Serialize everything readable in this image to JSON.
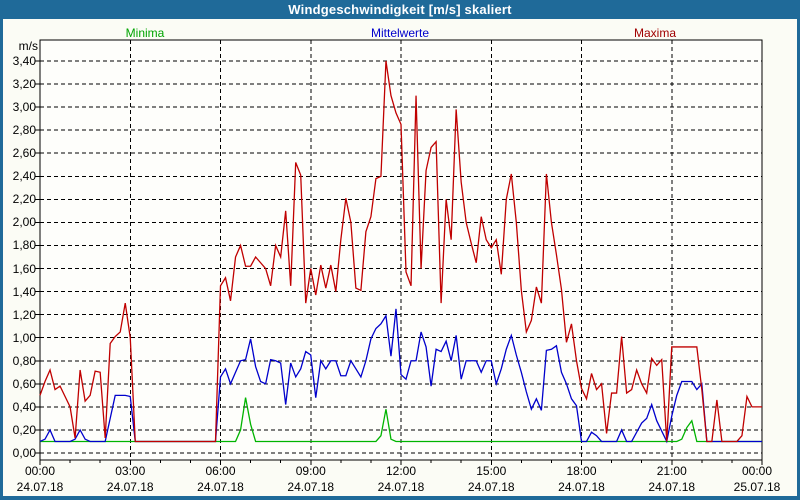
{
  "window": {
    "title": "Windgeschwindigkeit [m/s] skaliert",
    "titlebar_color": "#1f6a99",
    "background_color": "#fbfcf5",
    "plot_background": "#fefefb"
  },
  "legend": [
    {
      "label": "Minima",
      "color": "#00a400"
    },
    {
      "label": "Mittelwerte",
      "color": "#0000cc"
    },
    {
      "label": "Maxima",
      "color": "#a00000"
    }
  ],
  "chart_data": {
    "type": "line",
    "title": "Windgeschwindigkeit [m/s] skaliert",
    "xlabel": "",
    "ylabel": "m/s",
    "ylim": [
      0.0,
      3.4
    ],
    "ytick_step": 0.2,
    "ytick_labels": [
      "0,00",
      "0,20",
      "0,40",
      "0,60",
      "0,80",
      "1,00",
      "1,20",
      "1,40",
      "1,60",
      "1,80",
      "2,00",
      "2,20",
      "2,40",
      "2,60",
      "2,80",
      "3,00",
      "3,20",
      "3,40"
    ],
    "x_hours_range": [
      0,
      24
    ],
    "xticks": [
      {
        "time": "00:00",
        "date": "24.07.18"
      },
      {
        "time": "03:00",
        "date": "24.07.18"
      },
      {
        "time": "06:00",
        "date": "24.07.18"
      },
      {
        "time": "09:00",
        "date": "24.07.18"
      },
      {
        "time": "12:00",
        "date": "24.07.18"
      },
      {
        "time": "15:00",
        "date": "24.07.18"
      },
      {
        "time": "18:00",
        "date": "24.07.18"
      },
      {
        "time": "21:00",
        "date": "24.07.18"
      },
      {
        "time": "00:00",
        "date": "25.07.18"
      }
    ],
    "grid": "dashed",
    "legend_position": "top",
    "sample_interval_minutes": 10,
    "series": [
      {
        "name": "Minima",
        "color": "#00b400",
        "values": [
          0.1,
          0.1,
          0.1,
          0.1,
          0.1,
          0.1,
          0.1,
          0.1,
          0.1,
          0.1,
          0.1,
          0.1,
          0.1,
          0.1,
          0.1,
          0.1,
          0.1,
          0.1,
          0.1,
          0.1,
          0.1,
          0.1,
          0.1,
          0.1,
          0.1,
          0.1,
          0.1,
          0.1,
          0.1,
          0.1,
          0.1,
          0.1,
          0.1,
          0.1,
          0.1,
          0.1,
          0.1,
          0.1,
          0.1,
          0.1,
          0.2,
          0.48,
          0.25,
          0.1,
          0.1,
          0.1,
          0.1,
          0.1,
          0.1,
          0.1,
          0.1,
          0.1,
          0.1,
          0.1,
          0.1,
          0.1,
          0.1,
          0.1,
          0.1,
          0.1,
          0.1,
          0.1,
          0.1,
          0.1,
          0.1,
          0.1,
          0.1,
          0.1,
          0.15,
          0.38,
          0.12,
          0.1,
          0.1,
          0.1,
          0.1,
          0.1,
          0.1,
          0.1,
          0.1,
          0.1,
          0.1,
          0.1,
          0.1,
          0.1,
          0.1,
          0.1,
          0.1,
          0.1,
          0.1,
          0.1,
          0.1,
          0.1,
          0.1,
          0.1,
          0.1,
          0.1,
          0.1,
          0.1,
          0.1,
          0.1,
          0.1,
          0.1,
          0.1,
          0.1,
          0.1,
          0.1,
          0.1,
          0.1,
          0.1,
          0.1,
          0.1,
          0.1,
          0.1,
          0.1,
          0.1,
          0.1,
          0.1,
          0.1,
          0.1,
          0.1,
          0.1,
          0.1,
          0.1,
          0.1,
          0.1,
          0.1,
          0.1,
          0.1,
          0.12,
          0.22,
          0.28,
          0.1,
          0.1,
          0.1,
          0.1,
          0.1,
          0.1,
          0.1,
          0.1,
          0.1,
          0.1,
          0.1,
          0.1,
          0.1,
          0.1
        ]
      },
      {
        "name": "Mittelwerte",
        "color": "#0000cc",
        "values": [
          0.1,
          0.12,
          0.2,
          0.1,
          0.1,
          0.1,
          0.1,
          0.12,
          0.2,
          0.12,
          0.1,
          0.1,
          0.1,
          0.1,
          0.3,
          0.5,
          0.5,
          0.5,
          0.49,
          0.1,
          0.1,
          0.1,
          0.1,
          0.1,
          0.1,
          0.1,
          0.1,
          0.1,
          0.1,
          0.1,
          0.1,
          0.1,
          0.1,
          0.1,
          0.1,
          0.1,
          0.66,
          0.73,
          0.6,
          0.7,
          0.8,
          0.81,
          0.99,
          0.75,
          0.62,
          0.6,
          0.81,
          0.8,
          0.78,
          0.42,
          0.78,
          0.66,
          0.73,
          0.88,
          0.85,
          0.48,
          0.8,
          0.73,
          0.8,
          0.8,
          0.67,
          0.67,
          0.8,
          0.73,
          0.66,
          0.8,
          0.99,
          1.08,
          1.12,
          1.19,
          0.84,
          1.25,
          0.68,
          0.64,
          0.8,
          0.8,
          1.05,
          0.92,
          0.58,
          0.9,
          0.88,
          0.97,
          0.8,
          1.02,
          0.64,
          0.8,
          0.8,
          0.8,
          0.7,
          0.8,
          0.8,
          0.6,
          0.73,
          0.9,
          1.02,
          0.85,
          0.7,
          0.53,
          0.38,
          0.47,
          0.37,
          0.89,
          0.9,
          0.93,
          0.7,
          0.6,
          0.47,
          0.41,
          0.1,
          0.1,
          0.18,
          0.15,
          0.1,
          0.1,
          0.1,
          0.1,
          0.2,
          0.1,
          0.1,
          0.18,
          0.26,
          0.3,
          0.42,
          0.28,
          0.19,
          0.1,
          0.32,
          0.5,
          0.62,
          0.62,
          0.62,
          0.55,
          0.6,
          0.1,
          0.1,
          0.1,
          0.1,
          0.1,
          0.1,
          0.1,
          0.1,
          0.1,
          0.1,
          0.1,
          0.1
        ]
      },
      {
        "name": "Maxima",
        "color": "#c00000",
        "values": [
          0.5,
          0.62,
          0.72,
          0.55,
          0.58,
          0.49,
          0.4,
          0.13,
          0.72,
          0.45,
          0.5,
          0.71,
          0.7,
          0.13,
          0.95,
          1.01,
          1.05,
          1.3,
          1.0,
          0.1,
          0.1,
          0.1,
          0.1,
          0.1,
          0.1,
          0.1,
          0.1,
          0.1,
          0.1,
          0.1,
          0.1,
          0.1,
          0.1,
          0.1,
          0.1,
          0.1,
          1.45,
          1.52,
          1.32,
          1.7,
          1.8,
          1.62,
          1.62,
          1.7,
          1.65,
          1.6,
          1.45,
          1.8,
          1.7,
          2.1,
          1.45,
          2.52,
          2.41,
          1.3,
          1.6,
          1.37,
          1.63,
          1.43,
          1.63,
          1.4,
          1.85,
          2.21,
          2.0,
          1.43,
          1.41,
          1.92,
          2.05,
          2.38,
          2.4,
          3.4,
          3.1,
          2.95,
          2.85,
          1.57,
          1.45,
          3.1,
          1.6,
          2.45,
          2.65,
          2.7,
          1.3,
          2.2,
          1.85,
          2.98,
          2.35,
          2.0,
          1.82,
          1.65,
          2.05,
          1.85,
          1.78,
          1.85,
          1.55,
          2.2,
          2.42,
          2.0,
          1.41,
          1.05,
          1.15,
          1.44,
          1.3,
          2.42,
          2.0,
          1.72,
          1.42,
          0.96,
          1.12,
          0.8,
          0.56,
          0.47,
          0.69,
          0.55,
          0.6,
          0.17,
          0.52,
          0.52,
          1.01,
          0.52,
          0.55,
          0.72,
          0.6,
          0.52,
          0.82,
          0.76,
          0.81,
          0.1,
          0.92,
          0.92,
          0.92,
          0.92,
          0.92,
          0.92,
          0.55,
          0.1,
          0.1,
          0.46,
          0.1,
          0.1,
          0.1,
          0.1,
          0.15,
          0.49,
          0.4,
          0.4,
          0.4
        ]
      }
    ]
  }
}
